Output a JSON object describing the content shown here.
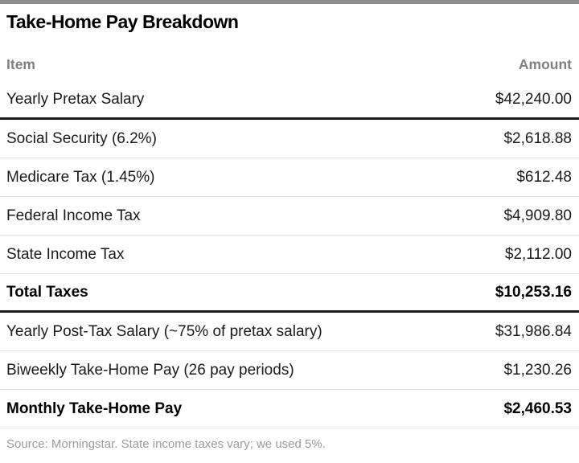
{
  "header": {
    "title": "Take-Home Pay Breakdown"
  },
  "table": {
    "columns": [
      "Item",
      "Amount"
    ],
    "rows": [
      {
        "item": "Yearly Pretax Salary",
        "amount": "$42,240.00",
        "emphasis": false
      },
      {
        "item": "Social Security (6.2%)",
        "amount": "$2,618.88",
        "emphasis": false
      },
      {
        "item": "Medicare Tax (1.45%)",
        "amount": "$612.48",
        "emphasis": false
      },
      {
        "item": "Federal Income Tax",
        "amount": "$4,909.80",
        "emphasis": false
      },
      {
        "item": "State Income Tax",
        "amount": "$2,112.00",
        "emphasis": false
      },
      {
        "item": "Total Taxes",
        "amount": "$10,253.16",
        "emphasis": true
      },
      {
        "item": "Yearly Post-Tax Salary (~75% of pretax salary)",
        "amount": "$31,986.84",
        "emphasis": false
      },
      {
        "item": "Biweekly Take-Home Pay (26 pay periods)",
        "amount": "$1,230.26",
        "emphasis": false
      },
      {
        "item": "Monthly Take-Home Pay",
        "amount": "$2,460.53",
        "emphasis": true
      }
    ]
  },
  "footer": {
    "source": "Source: Morningstar. State income taxes vary; we used 5%."
  },
  "colors": {
    "top_bar": "#8c8c8c",
    "rule_heavy": "#1c1c1c",
    "rule_light": "#e3e3e3",
    "header_text": "#7f7f7f",
    "body_text": "#1a1a1a",
    "source_text": "#9a9a9a"
  },
  "chart_data": {
    "type": "table",
    "title": "Take-Home Pay Breakdown",
    "columns": [
      "Item",
      "Amount"
    ],
    "rows": [
      [
        "Yearly Pretax Salary",
        "$42,240.00"
      ],
      [
        "Social Security (6.2%)",
        "$2,618.88"
      ],
      [
        "Medicare Tax (1.45%)",
        "$612.48"
      ],
      [
        "Federal Income Tax",
        "$4,909.80"
      ],
      [
        "State Income Tax",
        "$2,112.00"
      ],
      [
        "Total Taxes",
        "$10,253.16"
      ],
      [
        "Yearly Post-Tax Salary (~75% of pretax salary)",
        "$31,986.84"
      ],
      [
        "Biweekly Take-Home Pay (26 pay periods)",
        "$1,230.26"
      ],
      [
        "Monthly Take-Home Pay",
        "$2,460.53"
      ]
    ],
    "emphasized_rows": [
      "Total Taxes",
      "Monthly Take-Home Pay"
    ],
    "values_numeric": [
      42240.0,
      2618.88,
      612.48,
      4909.8,
      2112.0,
      10253.16,
      31986.84,
      1230.26,
      2460.53
    ],
    "source": "Source: Morningstar. State income taxes vary; we used 5%."
  }
}
